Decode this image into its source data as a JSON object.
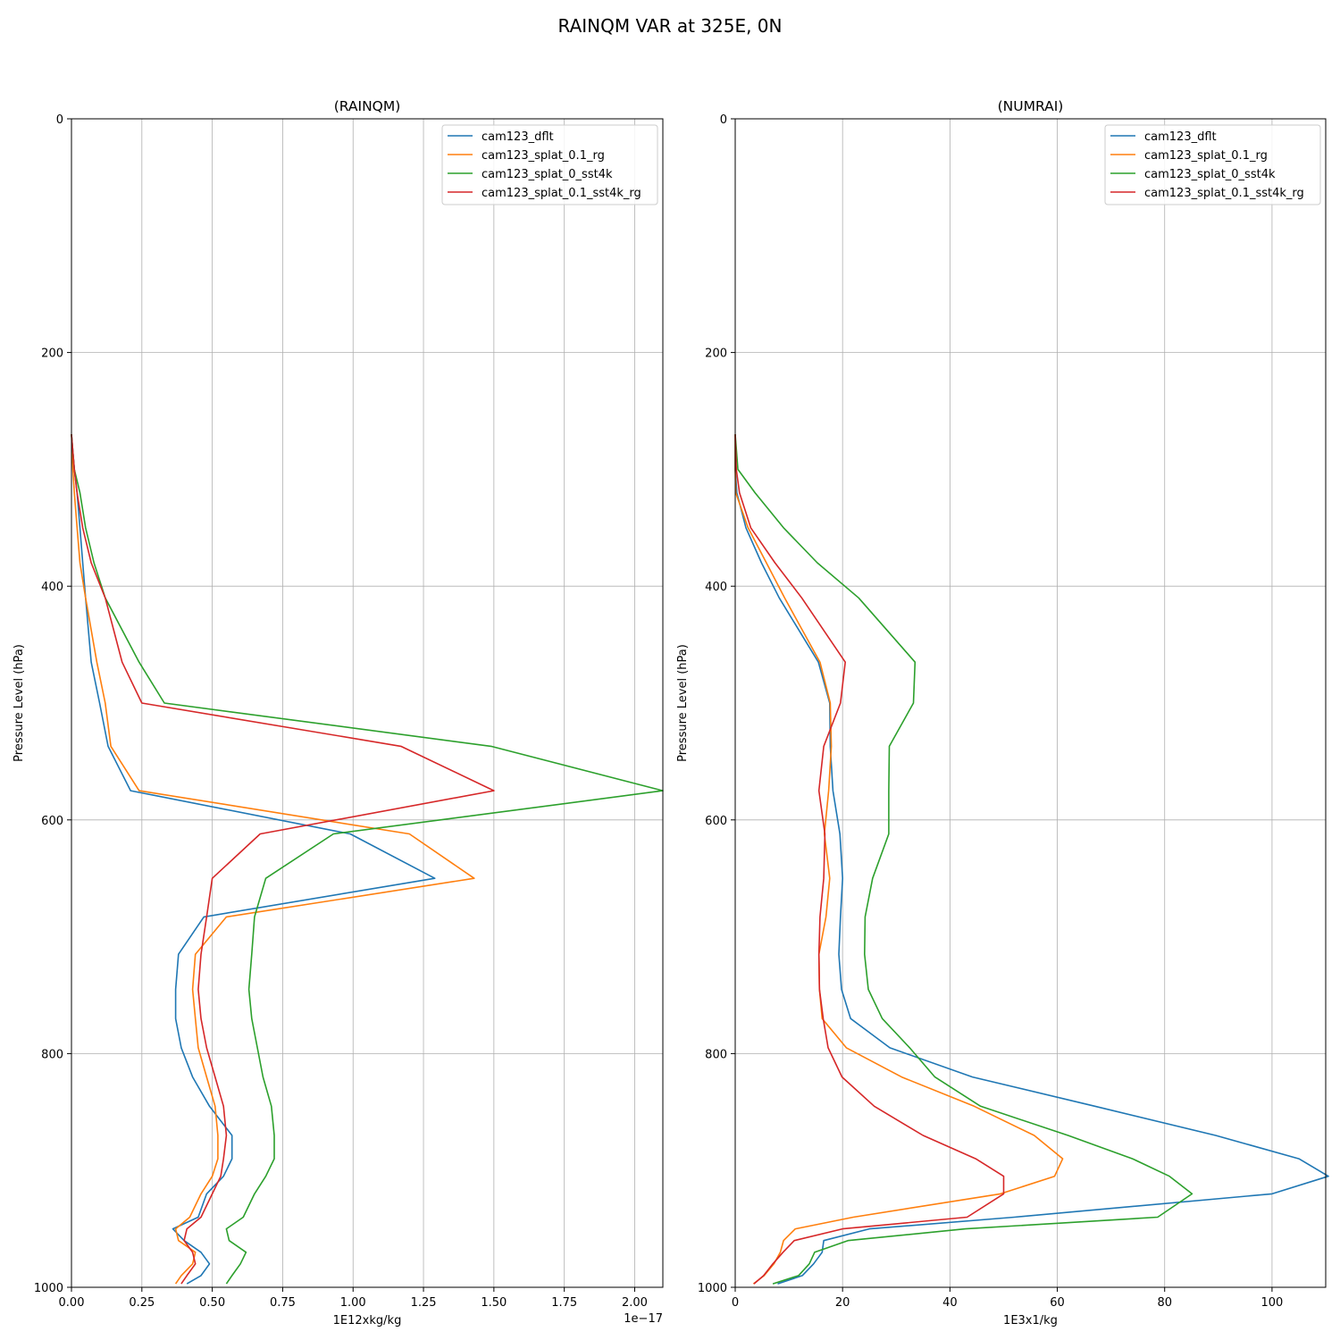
{
  "figure": {
    "suptitle": "RAINQM VAR at 325E, 0N"
  },
  "colors": {
    "cam123_dflt": "#1f77b4",
    "cam123_splat_0.1_rg": "#ff7f0e",
    "cam123_splat_0_sst4k": "#2ca02c",
    "cam123_splat_0.1_sst4k_rg": "#d62728"
  },
  "chart_data": [
    {
      "type": "line",
      "title": "(RAINQM)",
      "xlabel": "1E12xkg/kg",
      "ylabel": "Pressure Level (hPa)",
      "x_offset_label": "1e−17",
      "xlim": [
        0,
        2.1
      ],
      "ylim": [
        1000,
        0
      ],
      "y_inverted": true,
      "xticks": [
        "0.00",
        "0.25",
        "0.50",
        "0.75",
        "1.00",
        "1.25",
        "1.50",
        "1.75",
        "2.00"
      ],
      "yticks": [
        "0",
        "200",
        "400",
        "600",
        "800",
        "1000"
      ],
      "grid": true,
      "legend_position": "top-right",
      "y": [
        270,
        300,
        320,
        350,
        380,
        410,
        465,
        500,
        537,
        575,
        612,
        650,
        683,
        715,
        745,
        770,
        795,
        820,
        845,
        870,
        890,
        905,
        920,
        940,
        950,
        960,
        970,
        980,
        990,
        997
      ],
      "series": [
        {
          "name": "cam123_dflt",
          "x": [
            0.0,
            0.01,
            0.02,
            0.03,
            0.04,
            0.05,
            0.07,
            0.1,
            0.13,
            0.21,
            0.99,
            1.29,
            0.47,
            0.38,
            0.37,
            0.37,
            0.39,
            0.43,
            0.49,
            0.57,
            0.57,
            0.54,
            0.48,
            0.45,
            0.36,
            0.4,
            0.46,
            0.49,
            0.46,
            0.41
          ]
        },
        {
          "name": "cam123_splat_0.1_rg",
          "x": [
            0.0,
            0.005,
            0.01,
            0.02,
            0.03,
            0.05,
            0.09,
            0.12,
            0.14,
            0.24,
            1.2,
            1.43,
            0.55,
            0.44,
            0.43,
            0.44,
            0.45,
            0.48,
            0.51,
            0.52,
            0.52,
            0.5,
            0.46,
            0.42,
            0.37,
            0.38,
            0.44,
            0.43,
            0.39,
            0.37
          ]
        },
        {
          "name": "cam123_splat_0_sst4k",
          "x": [
            0.0,
            0.01,
            0.03,
            0.05,
            0.08,
            0.12,
            0.24,
            0.33,
            1.49,
            2.1,
            0.93,
            0.69,
            0.65,
            0.64,
            0.63,
            0.64,
            0.66,
            0.68,
            0.71,
            0.72,
            0.72,
            0.69,
            0.65,
            0.61,
            0.55,
            0.56,
            0.62,
            0.6,
            0.57,
            0.55
          ]
        },
        {
          "name": "cam123_splat_0.1_sst4k_rg",
          "x": [
            0.0,
            0.01,
            0.02,
            0.04,
            0.07,
            0.12,
            0.18,
            0.25,
            1.17,
            1.5,
            0.67,
            0.5,
            0.48,
            0.46,
            0.45,
            0.46,
            0.48,
            0.51,
            0.54,
            0.55,
            0.54,
            0.53,
            0.5,
            0.46,
            0.41,
            0.4,
            0.43,
            0.44,
            0.41,
            0.39
          ]
        }
      ]
    },
    {
      "type": "line",
      "title": "(NUMRAI)",
      "xlabel": "1E3x1/kg",
      "ylabel": "Pressure Level (hPa)",
      "xlim": [
        0,
        110
      ],
      "ylim": [
        1000,
        0
      ],
      "y_inverted": true,
      "xticks": [
        "0",
        "20",
        "40",
        "60",
        "80",
        "100"
      ],
      "yticks": [
        "0",
        "200",
        "400",
        "600",
        "800",
        "1000"
      ],
      "grid": true,
      "legend_position": "top-right",
      "y": [
        270,
        300,
        320,
        350,
        380,
        410,
        465,
        500,
        537,
        575,
        612,
        650,
        683,
        715,
        745,
        770,
        795,
        820,
        845,
        870,
        890,
        905,
        920,
        940,
        950,
        960,
        970,
        980,
        990,
        997
      ],
      "series": [
        {
          "name": "cam123_dflt",
          "x": [
            0.0,
            0.0,
            0.3,
            2.0,
            4.9,
            8.2,
            15.5,
            17.6,
            17.7,
            18.2,
            19.5,
            20.0,
            19.6,
            19.3,
            19.8,
            21.5,
            28.8,
            44.2,
            67.0,
            89.5,
            105.0,
            110.5,
            100.0,
            52.0,
            25.0,
            16.5,
            16.2,
            14.6,
            12.5,
            7.9
          ]
        },
        {
          "name": "cam123_splat_0.1_rg",
          "x": [
            0.0,
            0.0,
            0.1,
            2.4,
            5.8,
            9.2,
            15.8,
            17.7,
            17.9,
            17.4,
            16.6,
            17.6,
            16.9,
            15.6,
            15.7,
            16.2,
            20.7,
            31.0,
            44.5,
            55.7,
            61.0,
            59.5,
            49.4,
            22.0,
            11.2,
            9.0,
            8.4,
            7.2,
            5.4,
            3.4
          ]
        },
        {
          "name": "cam123_splat_0_sst4k",
          "x": [
            0.0,
            0.5,
            3.7,
            9.0,
            15.3,
            23.0,
            33.5,
            33.2,
            28.7,
            28.6,
            28.6,
            25.6,
            24.2,
            24.1,
            24.8,
            27.4,
            32.5,
            37.2,
            45.7,
            62.0,
            74.0,
            80.9,
            85.1,
            78.7,
            42.9,
            21.0,
            14.8,
            13.8,
            11.8,
            7.0
          ]
        },
        {
          "name": "cam123_splat_0.1_sst4k_rg",
          "x": [
            0.0,
            0.2,
            0.8,
            2.9,
            7.4,
            12.4,
            20.5,
            19.6,
            16.5,
            15.6,
            16.7,
            16.5,
            15.8,
            15.6,
            15.7,
            16.4,
            17.3,
            19.9,
            25.9,
            35.0,
            44.8,
            50.0,
            50.0,
            43.2,
            20.0,
            11.0,
            8.9,
            7.0,
            5.3,
            3.5
          ]
        }
      ]
    }
  ]
}
